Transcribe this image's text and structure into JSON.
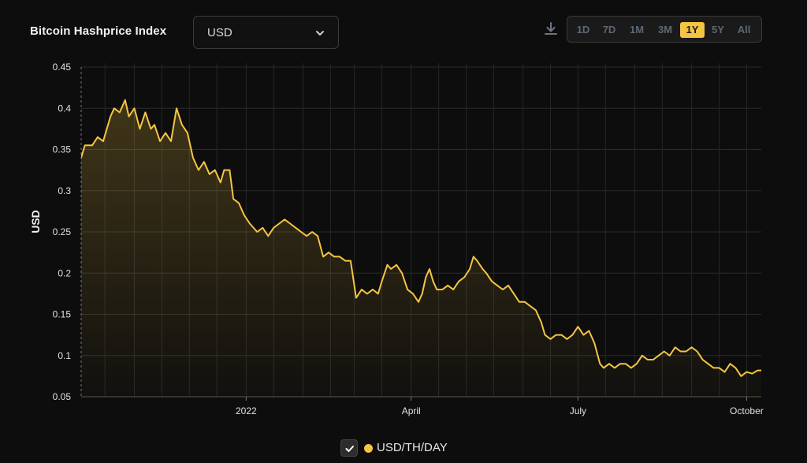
{
  "header": {
    "title": "Bitcoin Hashprice Index",
    "currency_value": "USD",
    "currency_icon": "chevron-down-icon",
    "download_icon": "download-icon",
    "ranges": [
      "1D",
      "7D",
      "1M",
      "3M",
      "1Y",
      "5Y",
      "All"
    ],
    "active_range": "1Y"
  },
  "legend": {
    "label": "USD/TH/DAY",
    "checked": true,
    "color": "#f5c542"
  },
  "chart_data": {
    "type": "area",
    "title": "",
    "ylabel": "USD",
    "xlabel": "",
    "ylim": [
      0.05,
      0.45
    ],
    "y_ticks": [
      0.45,
      0.4,
      0.35,
      0.3,
      0.25,
      0.2,
      0.15,
      0.1,
      0.05
    ],
    "y_tick_labels": [
      "0.45",
      "0.4",
      "0.35",
      "0.3",
      "0.25",
      "0.2",
      "0.15",
      "0.1",
      "0.05"
    ],
    "x_tick_labels": [
      {
        "date": "2022-01-01",
        "label": "2022"
      },
      {
        "date": "2022-04-01",
        "label": "April"
      },
      {
        "date": "2022-07-01",
        "label": "July"
      },
      {
        "date": "2022-10-01",
        "label": "October"
      }
    ],
    "xlim": [
      "2021-10-03",
      "2022-10-09"
    ],
    "grid": true,
    "line_color": "#f5c542",
    "series": [
      {
        "name": "USD/TH/DAY",
        "points": [
          [
            "2021-10-03",
            0.34
          ],
          [
            "2021-10-05",
            0.355
          ],
          [
            "2021-10-09",
            0.355
          ],
          [
            "2021-10-12",
            0.365
          ],
          [
            "2021-10-15",
            0.36
          ],
          [
            "2021-10-19",
            0.39
          ],
          [
            "2021-10-21",
            0.4
          ],
          [
            "2021-10-24",
            0.395
          ],
          [
            "2021-10-27",
            0.41
          ],
          [
            "2021-10-29",
            0.39
          ],
          [
            "2021-11-01",
            0.4
          ],
          [
            "2021-11-04",
            0.375
          ],
          [
            "2021-11-07",
            0.395
          ],
          [
            "2021-11-10",
            0.375
          ],
          [
            "2021-11-12",
            0.38
          ],
          [
            "2021-11-15",
            0.36
          ],
          [
            "2021-11-18",
            0.37
          ],
          [
            "2021-11-21",
            0.36
          ],
          [
            "2021-11-24",
            0.4
          ],
          [
            "2021-11-27",
            0.38
          ],
          [
            "2021-11-30",
            0.37
          ],
          [
            "2021-12-03",
            0.34
          ],
          [
            "2021-12-06",
            0.325
          ],
          [
            "2021-12-09",
            0.335
          ],
          [
            "2021-12-12",
            0.32
          ],
          [
            "2021-12-15",
            0.325
          ],
          [
            "2021-12-18",
            0.31
          ],
          [
            "2021-12-20",
            0.325
          ],
          [
            "2021-12-23",
            0.325
          ],
          [
            "2021-12-25",
            0.29
          ],
          [
            "2021-12-28",
            0.285
          ],
          [
            "2021-12-31",
            0.27
          ],
          [
            "2022-01-03",
            0.26
          ],
          [
            "2022-01-07",
            0.25
          ],
          [
            "2022-01-10",
            0.255
          ],
          [
            "2022-01-13",
            0.245
          ],
          [
            "2022-01-16",
            0.255
          ],
          [
            "2022-01-19",
            0.26
          ],
          [
            "2022-01-22",
            0.265
          ],
          [
            "2022-01-25",
            0.26
          ],
          [
            "2022-01-28",
            0.255
          ],
          [
            "2022-01-31",
            0.25
          ],
          [
            "2022-02-03",
            0.245
          ],
          [
            "2022-02-06",
            0.25
          ],
          [
            "2022-02-09",
            0.245
          ],
          [
            "2022-02-12",
            0.22
          ],
          [
            "2022-02-15",
            0.225
          ],
          [
            "2022-02-18",
            0.22
          ],
          [
            "2022-02-21",
            0.22
          ],
          [
            "2022-02-24",
            0.215
          ],
          [
            "2022-02-27",
            0.215
          ],
          [
            "2022-03-02",
            0.17
          ],
          [
            "2022-03-05",
            0.18
          ],
          [
            "2022-03-08",
            0.175
          ],
          [
            "2022-03-11",
            0.18
          ],
          [
            "2022-03-14",
            0.175
          ],
          [
            "2022-03-16",
            0.19
          ],
          [
            "2022-03-19",
            0.21
          ],
          [
            "2022-03-21",
            0.205
          ],
          [
            "2022-03-24",
            0.21
          ],
          [
            "2022-03-27",
            0.2
          ],
          [
            "2022-03-30",
            0.18
          ],
          [
            "2022-04-02",
            0.175
          ],
          [
            "2022-04-05",
            0.165
          ],
          [
            "2022-04-07",
            0.175
          ],
          [
            "2022-04-09",
            0.195
          ],
          [
            "2022-04-11",
            0.205
          ],
          [
            "2022-04-13",
            0.19
          ],
          [
            "2022-04-15",
            0.18
          ],
          [
            "2022-04-18",
            0.18
          ],
          [
            "2022-04-21",
            0.185
          ],
          [
            "2022-04-24",
            0.18
          ],
          [
            "2022-04-27",
            0.19
          ],
          [
            "2022-04-30",
            0.195
          ],
          [
            "2022-05-03",
            0.205
          ],
          [
            "2022-05-05",
            0.22
          ],
          [
            "2022-05-07",
            0.215
          ],
          [
            "2022-05-10",
            0.205
          ],
          [
            "2022-05-12",
            0.2
          ],
          [
            "2022-05-15",
            0.19
          ],
          [
            "2022-05-18",
            0.185
          ],
          [
            "2022-05-21",
            0.18
          ],
          [
            "2022-05-24",
            0.185
          ],
          [
            "2022-05-27",
            0.175
          ],
          [
            "2022-05-30",
            0.165
          ],
          [
            "2022-06-02",
            0.165
          ],
          [
            "2022-06-05",
            0.16
          ],
          [
            "2022-06-08",
            0.155
          ],
          [
            "2022-06-11",
            0.14
          ],
          [
            "2022-06-13",
            0.125
          ],
          [
            "2022-06-16",
            0.12
          ],
          [
            "2022-06-19",
            0.125
          ],
          [
            "2022-06-22",
            0.125
          ],
          [
            "2022-06-25",
            0.12
          ],
          [
            "2022-06-28",
            0.125
          ],
          [
            "2022-07-01",
            0.135
          ],
          [
            "2022-07-04",
            0.125
          ],
          [
            "2022-07-07",
            0.13
          ],
          [
            "2022-07-10",
            0.115
          ],
          [
            "2022-07-13",
            0.09
          ],
          [
            "2022-07-15",
            0.085
          ],
          [
            "2022-07-18",
            0.09
          ],
          [
            "2022-07-21",
            0.085
          ],
          [
            "2022-07-24",
            0.09
          ],
          [
            "2022-07-27",
            0.09
          ],
          [
            "2022-07-30",
            0.085
          ],
          [
            "2022-08-02",
            0.09
          ],
          [
            "2022-08-05",
            0.1
          ],
          [
            "2022-08-08",
            0.095
          ],
          [
            "2022-08-11",
            0.095
          ],
          [
            "2022-08-14",
            0.1
          ],
          [
            "2022-08-17",
            0.105
          ],
          [
            "2022-08-20",
            0.1
          ],
          [
            "2022-08-23",
            0.11
          ],
          [
            "2022-08-26",
            0.105
          ],
          [
            "2022-08-29",
            0.105
          ],
          [
            "2022-09-01",
            0.11
          ],
          [
            "2022-09-04",
            0.105
          ],
          [
            "2022-09-07",
            0.095
          ],
          [
            "2022-09-10",
            0.09
          ],
          [
            "2022-09-13",
            0.085
          ],
          [
            "2022-09-16",
            0.085
          ],
          [
            "2022-09-19",
            0.08
          ],
          [
            "2022-09-22",
            0.09
          ],
          [
            "2022-09-25",
            0.085
          ],
          [
            "2022-09-28",
            0.075
          ],
          [
            "2022-10-01",
            0.08
          ],
          [
            "2022-10-04",
            0.078
          ],
          [
            "2022-10-07",
            0.082
          ],
          [
            "2022-10-09",
            0.082
          ]
        ]
      }
    ]
  }
}
